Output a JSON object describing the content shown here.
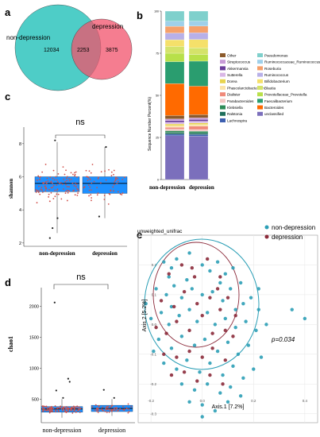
{
  "panel_labels": [
    "a",
    "b",
    "c",
    "d",
    "e"
  ],
  "chart_data": [
    {
      "panel": "a",
      "type": "venn",
      "sets": [
        {
          "name": "non-depression",
          "only": 12034,
          "color": "#2fc4bd"
        },
        {
          "name": "depression",
          "only": 3875,
          "color": "#f2526b"
        }
      ],
      "intersection": 2253
    },
    {
      "panel": "b",
      "type": "bar",
      "stacked": true,
      "categories": [
        "non-depression",
        "depression"
      ],
      "ylabel": "Sequence Number Percent(%)",
      "ylim": [
        0,
        100
      ],
      "yticks": [
        "0",
        "25",
        "50",
        "75",
        "100"
      ],
      "series": [
        {
          "name": "unclassified",
          "color": "#7b6fbc",
          "values": [
            26,
            26
          ]
        },
        {
          "name": "Lachnospira",
          "color": "#3d5fb0",
          "values": [
            1,
            1
          ]
        },
        {
          "name": "Ralstonia",
          "color": "#1f6f5c",
          "values": [
            1,
            1
          ]
        },
        {
          "name": "Klebsiella",
          "color": "#2e8b57",
          "values": [
            1,
            1
          ]
        },
        {
          "name": "Parabacteroides",
          "color": "#f4c7c3",
          "values": [
            1,
            1
          ]
        },
        {
          "name": "Dialister",
          "color": "#f08a7a",
          "values": [
            1,
            2
          ]
        },
        {
          "name": "Phascolarctobacterium",
          "color": "#fbe3a8",
          "values": [
            1,
            1
          ]
        },
        {
          "name": "Dorea",
          "color": "#e8d44d",
          "values": [
            1,
            1
          ]
        },
        {
          "name": "Sutterella",
          "color": "#d9b7e6",
          "values": [
            1,
            1
          ]
        },
        {
          "name": "Akkermansia",
          "color": "#6a3d9a",
          "values": [
            1,
            1
          ]
        },
        {
          "name": "Streptococcus",
          "color": "#c79ad6",
          "values": [
            1,
            1
          ]
        },
        {
          "name": "Other",
          "color": "#8c5a2b",
          "values": [
            2,
            2
          ]
        },
        {
          "name": "Bacteroides",
          "color": "#ff6a00",
          "values": [
            19,
            17
          ]
        },
        {
          "name": "Faecalibacterium",
          "color": "#2a9d6f",
          "values": [
            13,
            15
          ]
        },
        {
          "name": "Prevotellaceae_Prevotella",
          "color": "#b8e04a",
          "values": [
            5,
            4
          ]
        },
        {
          "name": "Blautia",
          "color": "#d4e36a",
          "values": [
            4,
            4
          ]
        },
        {
          "name": "Bifidobacterium",
          "color": "#f5e06a",
          "values": [
            4,
            5
          ]
        },
        {
          "name": "Ruminococcus",
          "color": "#b8b0e8",
          "values": [
            4,
            4
          ]
        },
        {
          "name": "Roseburia",
          "color": "#f5a06a",
          "values": [
            4,
            4
          ]
        },
        {
          "name": "Ruminococcaceae_Ruminococcus",
          "color": "#9fd0ea",
          "values": [
            3,
            3
          ]
        },
        {
          "name": "Pseudomonas",
          "color": "#7fd0cc",
          "values": [
            6,
            6
          ]
        }
      ],
      "legend": [
        {
          "name": "Other",
          "color": "#8c5a2b"
        },
        {
          "name": "Streptococcus",
          "color": "#c79ad6"
        },
        {
          "name": "Akkermansia",
          "color": "#6a3d9a"
        },
        {
          "name": "Sutterella",
          "color": "#d9b7e6"
        },
        {
          "name": "Dorea",
          "color": "#e8d44d"
        },
        {
          "name": "Phascolarctobacterium",
          "color": "#fbe3a8"
        },
        {
          "name": "Dialister",
          "color": "#f08a7a"
        },
        {
          "name": "Parabacteroides",
          "color": "#f4c7c3"
        },
        {
          "name": "Klebsiella",
          "color": "#2e8b57"
        },
        {
          "name": "Ralstonia",
          "color": "#1f6f5c"
        },
        {
          "name": "Lachnospira",
          "color": "#3d5fb0"
        },
        {
          "name": "Pseudomonas",
          "color": "#7fd0cc"
        },
        {
          "name": "Ruminococcaceae_Ruminococcus",
          "color": "#9fd0ea"
        },
        {
          "name": "Roseburia",
          "color": "#f5a06a"
        },
        {
          "name": "Ruminococcus",
          "color": "#b8b0e8"
        },
        {
          "name": "Bifidobacterium",
          "color": "#f5e06a"
        },
        {
          "name": "Blautia",
          "color": "#d4e36a"
        },
        {
          "name": "Prevotellaceae_Prevotella",
          "color": "#b8e04a"
        },
        {
          "name": "Faecalibacterium",
          "color": "#2a9d6f"
        },
        {
          "name": "Bacteroides",
          "color": "#ff6a00"
        },
        {
          "name": "unclassified",
          "color": "#7b6fbc"
        }
      ]
    },
    {
      "panel": "c",
      "type": "box",
      "categories": [
        "non-depression",
        "depression"
      ],
      "ylabel": "shannon",
      "ylim": [
        1.8,
        9
      ],
      "yticks": [
        2,
        4,
        6,
        8
      ],
      "box_color": "#1e90ff",
      "boxes": [
        {
          "q1": 5.1,
          "median": 5.6,
          "q3": 6.0,
          "low": 2.6,
          "high": 8.1
        },
        {
          "q1": 5.0,
          "median": 5.6,
          "q3": 6.0,
          "low": 3.5,
          "high": 7.8
        }
      ],
      "significance": "ns"
    },
    {
      "panel": "d",
      "type": "box",
      "categories": [
        "non-depression",
        "depression"
      ],
      "ylabel": "chao1",
      "ylim": [
        120,
        2300
      ],
      "yticks": [
        500,
        1000,
        1500,
        2000
      ],
      "box_color": "#1e90ff",
      "boxes": [
        {
          "q1": 290,
          "median": 340,
          "q3": 380,
          "low": 200,
          "high": 500
        },
        {
          "q1": 300,
          "median": 350,
          "q3": 400,
          "low": 230,
          "high": 500
        }
      ],
      "significance": "ns"
    },
    {
      "panel": "e",
      "type": "scatter",
      "title": "unweighted_unifrac",
      "xlabel": "Axis.1 [7.2%]",
      "ylabel": "Axis.2 [5.2%]",
      "xlim": [
        -0.25,
        0.45
      ],
      "ylim": [
        -0.33,
        0.3
      ],
      "xticks": [
        -0.2,
        0,
        0.2,
        0.4
      ],
      "xtick_labels": [
        "-0.2",
        "0.0",
        "0.2",
        "0.4"
      ],
      "yticks": [
        -0.3,
        -0.2,
        -0.1,
        0,
        0.1,
        0.2
      ],
      "ytick_labels": [
        "-0.3",
        "-0.2",
        "-0.1",
        "0.0",
        "0.1",
        "0.2"
      ],
      "annotation": "p=0.034",
      "series": [
        {
          "name": "non-depression",
          "color": "#2c9fb6",
          "points": [
            [
              -0.15,
              0.21
            ],
            [
              -0.12,
              0.19
            ],
            [
              -0.1,
              0.22
            ],
            [
              -0.05,
              0.24
            ],
            [
              0.0,
              0.2
            ],
            [
              0.03,
              0.18
            ],
            [
              0.06,
              0.21
            ],
            [
              0.09,
              0.17
            ],
            [
              0.12,
              0.19
            ],
            [
              0.15,
              0.14
            ],
            [
              -0.18,
              0.12
            ],
            [
              -0.14,
              0.1
            ],
            [
              -0.11,
              0.13
            ],
            [
              -0.08,
              0.09
            ],
            [
              -0.04,
              0.12
            ],
            [
              0.0,
              0.1
            ],
            [
              0.04,
              0.11
            ],
            [
              0.08,
              0.08
            ],
            [
              0.11,
              0.12
            ],
            [
              0.16,
              0.07
            ],
            [
              0.19,
              0.09
            ],
            [
              0.22,
              0.05
            ],
            [
              -0.2,
              0.02
            ],
            [
              -0.16,
              0.04
            ],
            [
              -0.13,
              0.0
            ],
            [
              -0.09,
              0.03
            ],
            [
              -0.05,
              0.05
            ],
            [
              -0.02,
              0.01
            ],
            [
              0.02,
              0.04
            ],
            [
              0.05,
              0.0
            ],
            [
              0.09,
              0.02
            ],
            [
              0.13,
              -0.01
            ],
            [
              0.17,
              0.01
            ],
            [
              0.21,
              -0.02
            ],
            [
              0.25,
              0.0
            ],
            [
              -0.17,
              -0.05
            ],
            [
              -0.12,
              -0.08
            ],
            [
              -0.08,
              -0.04
            ],
            [
              -0.03,
              -0.07
            ],
            [
              0.01,
              -0.05
            ],
            [
              0.06,
              -0.09
            ],
            [
              0.1,
              -0.06
            ],
            [
              0.14,
              -0.1
            ],
            [
              0.18,
              -0.07
            ],
            [
              0.23,
              -0.11
            ],
            [
              -0.15,
              -0.13
            ],
            [
              -0.1,
              -0.15
            ],
            [
              -0.06,
              -0.12
            ],
            [
              -0.01,
              -0.16
            ],
            [
              0.03,
              -0.13
            ],
            [
              0.08,
              -0.17
            ],
            [
              0.12,
              -0.14
            ],
            [
              0.16,
              -0.18
            ],
            [
              0.2,
              -0.15
            ],
            [
              -0.08,
              -0.2
            ],
            [
              -0.03,
              -0.22
            ],
            [
              0.02,
              -0.2
            ],
            [
              0.07,
              -0.23
            ],
            [
              0.11,
              -0.21
            ],
            [
              0.15,
              -0.24
            ],
            [
              -0.05,
              -0.26
            ],
            [
              0.0,
              -0.27
            ],
            [
              0.05,
              -0.29
            ],
            [
              0.1,
              -0.26
            ],
            [
              0.0,
              -0.31
            ],
            [
              0.35,
              0.05
            ],
            [
              0.4,
              0.02
            ],
            [
              -0.13,
              0.16
            ],
            [
              -0.06,
              0.15
            ],
            [
              0.07,
              0.14
            ],
            [
              0.13,
              0.05
            ],
            [
              -0.19,
              -0.09
            ],
            [
              0.22,
              0.12
            ],
            [
              -0.12,
              0.06
            ],
            [
              -0.22,
              0.07
            ]
          ]
        },
        {
          "name": "depression",
          "color": "#8b2a3a",
          "points": [
            [
              -0.13,
              0.17
            ],
            [
              -0.08,
              0.2
            ],
            [
              -0.03,
              0.16
            ],
            [
              0.02,
              0.22
            ],
            [
              0.07,
              0.16
            ],
            [
              -0.16,
              0.08
            ],
            [
              -0.11,
              0.06
            ],
            [
              -0.07,
              0.11
            ],
            [
              -0.02,
              0.07
            ],
            [
              0.03,
              0.09
            ],
            [
              0.07,
              0.05
            ],
            [
              0.1,
              0.09
            ],
            [
              -0.18,
              -0.01
            ],
            [
              -0.14,
              -0.03
            ],
            [
              -0.1,
              0.01
            ],
            [
              -0.05,
              -0.02
            ],
            [
              0.0,
              0.03
            ],
            [
              0.04,
              -0.03
            ],
            [
              0.09,
              -0.02
            ],
            [
              0.13,
              0.03
            ],
            [
              -0.15,
              -0.1
            ],
            [
              -0.1,
              -0.11
            ],
            [
              -0.05,
              -0.09
            ],
            [
              0.0,
              -0.11
            ],
            [
              0.04,
              -0.08
            ],
            [
              0.09,
              -0.12
            ],
            [
              -0.12,
              -0.17
            ],
            [
              -0.07,
              -0.16
            ],
            [
              -0.02,
              -0.19
            ],
            [
              0.03,
              -0.17
            ],
            [
              0.08,
              -0.2
            ],
            [
              0.06,
              0.12
            ],
            [
              -0.04,
              0.19
            ],
            [
              0.12,
              -0.04
            ]
          ]
        }
      ]
    }
  ]
}
